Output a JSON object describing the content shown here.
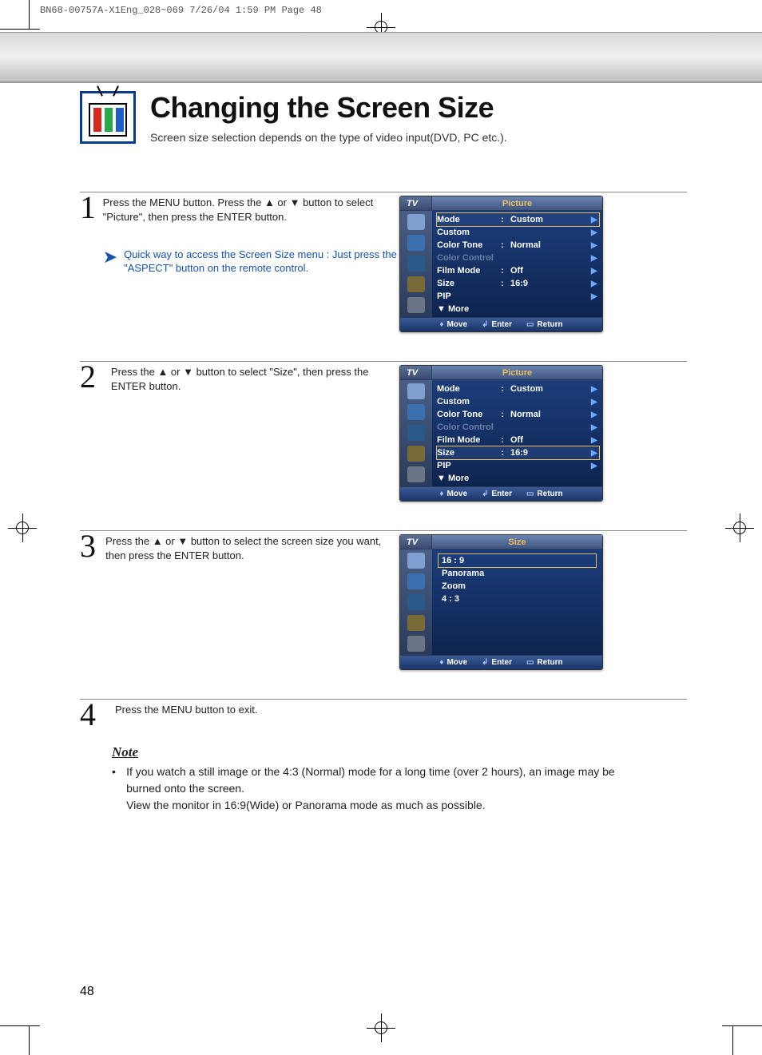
{
  "print_header": "BN68-00757A-X1Eng_028~069  7/26/04  1:59 PM  Page 48",
  "title": "Changing the Screen Size",
  "subtitle": "Screen size selection depends on the type of video input(DVD, PC etc.).",
  "page_number": "48",
  "tv_icon": {
    "border_color": "#0a3a8a",
    "bars": [
      "#d52b1e",
      "#2aa84a",
      "#1f5fc4"
    ]
  },
  "steps": [
    {
      "num": "1",
      "text": "Press the MENU button. Press the ▲ or ▼ button to select \"Picture\", then press the ENTER button.",
      "tip": "Quick way to access the Screen Size menu : Just press the \"ASPECT\" button on the remote control."
    },
    {
      "num": "2",
      "text": "Press the ▲ or ▼ button to select \"Size\", then press the ENTER button."
    },
    {
      "num": "3",
      "text": "Press the ▲ or ▼ button to select the screen size you want, then press the ENTER button."
    },
    {
      "num": "4",
      "text": "Press the MENU button to exit."
    }
  ],
  "osd": {
    "tv_label": "TV",
    "titles": {
      "picture": "Picture",
      "size": "Size"
    },
    "footer": {
      "move": "Move",
      "enter": "Enter",
      "return": "Return",
      "move_sym": "♦",
      "enter_sym": "↲",
      "return_sym": "▭"
    },
    "icon_colors": [
      "#7fa0d0",
      "#3a6fb0",
      "#2a5a8a",
      "#7a6a3a",
      "#6a7585"
    ],
    "picture_rows": [
      {
        "label": "Mode",
        "value": "Custom",
        "colon": ":"
      },
      {
        "label": "Custom",
        "value": "",
        "colon": ""
      },
      {
        "label": "Color Tone",
        "value": "Normal",
        "colon": ":"
      },
      {
        "label": "Color Control",
        "value": "",
        "colon": "",
        "dim": true
      },
      {
        "label": "Film Mode",
        "value": "Off",
        "colon": ":"
      },
      {
        "label": "Size",
        "value": "16:9",
        "colon": ":"
      },
      {
        "label": "PIP",
        "value": "",
        "colon": ""
      },
      {
        "label": "▼ More",
        "value": "",
        "colon": "",
        "noarr": true
      }
    ],
    "menu1_selected_index": 0,
    "menu2_selected_index": 5,
    "size_options": [
      "16 : 9",
      "Panorama",
      "Zoom",
      "4 : 3"
    ],
    "size_selected_index": 0,
    "colors": {
      "head_grad_top": "#6a84b2",
      "head_grad_bot": "#41557f",
      "body_grad_top": "#1c3d7a",
      "body_grad_bot": "#0e2450",
      "foot_grad_top": "#3a5a95",
      "foot_grad_bot": "#1a3568",
      "accent": "#e8c060",
      "arrow": "#6fa8ff",
      "dim": "#6a7fa5"
    }
  },
  "note": {
    "title": "Note",
    "bullet": "If you watch a still image or the 4:3 (Normal) mode for a long time (over 2 hours), an image may be burned onto the screen.\nView the monitor in 16:9(Wide) or Panorama mode as much as possible."
  }
}
